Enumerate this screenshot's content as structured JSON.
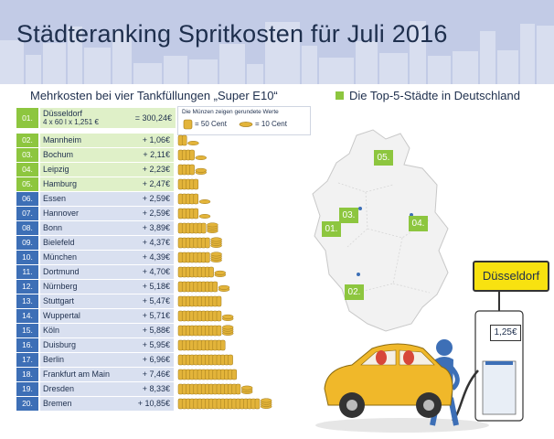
{
  "title": "Städteranking Spritkosten für Juli 2016",
  "subtitle": "Mehrkosten bei vier Tankfüllungen „Super E10“",
  "legend": "Die Top-5-Städte in Deutschland",
  "coin_note": {
    "title": "Die Münzen zeigen gerundete Werte",
    "coin_50": "= 50 Cent",
    "coin_10": "= 10 Cent"
  },
  "colors": {
    "green": "#8dc63f",
    "blue": "#3d6fb6",
    "dark": "#1e2f4d",
    "coin": "#e3b43a"
  },
  "chart_data": {
    "type": "table",
    "reference": {
      "rank": "01.",
      "city": "Düsseldorf",
      "formula": "4 x 60 l x 1,251 €",
      "value_label": "= 300,24€",
      "value": 300.24
    },
    "rows": [
      {
        "rank": "02.",
        "city": "Mannheim",
        "value_label": "+ 1,06€",
        "value": 1.06
      },
      {
        "rank": "03.",
        "city": "Bochum",
        "value_label": "+ 2,11€",
        "value": 2.11
      },
      {
        "rank": "04.",
        "city": "Leipzig",
        "value_label": "+ 2,23€",
        "value": 2.23
      },
      {
        "rank": "05.",
        "city": "Hamburg",
        "value_label": "+ 2,47€",
        "value": 2.47
      },
      {
        "rank": "06.",
        "city": "Essen",
        "value_label": "+ 2,59€",
        "value": 2.59
      },
      {
        "rank": "07.",
        "city": "Hannover",
        "value_label": "+ 2,59€",
        "value": 2.59
      },
      {
        "rank": "08.",
        "city": "Bonn",
        "value_label": "+ 3,89€",
        "value": 3.89
      },
      {
        "rank": "09.",
        "city": "Bielefeld",
        "value_label": "+ 4,37€",
        "value": 4.37
      },
      {
        "rank": "10.",
        "city": "München",
        "value_label": "+ 4,39€",
        "value": 4.39
      },
      {
        "rank": "11.",
        "city": "Dortmund",
        "value_label": "+ 4,70€",
        "value": 4.7
      },
      {
        "rank": "12.",
        "city": "Nürnberg",
        "value_label": "+ 5,18€",
        "value": 5.18
      },
      {
        "rank": "13.",
        "city": "Stuttgart",
        "value_label": "+ 5,47€",
        "value": 5.47
      },
      {
        "rank": "14.",
        "city": "Wuppertal",
        "value_label": "+ 5,71€",
        "value": 5.71
      },
      {
        "rank": "15.",
        "city": "Köln",
        "value_label": "+ 5,88€",
        "value": 5.88
      },
      {
        "rank": "16.",
        "city": "Duisburg",
        "value_label": "+ 5,95€",
        "value": 5.95
      },
      {
        "rank": "17.",
        "city": "Berlin",
        "value_label": "+ 6,96€",
        "value": 6.96
      },
      {
        "rank": "18.",
        "city": "Frankfurt am Main",
        "value_label": "+ 7,46€",
        "value": 7.46
      },
      {
        "rank": "19.",
        "city": "Dresden",
        "value_label": "+ 8,33€",
        "value": 8.33
      },
      {
        "rank": "20.",
        "city": "Bremen",
        "value_label": "+ 10,85€",
        "value": 10.85
      }
    ]
  },
  "map": {
    "labels": [
      {
        "text": "01."
      },
      {
        "text": "02."
      },
      {
        "text": "03."
      },
      {
        "text": "04."
      },
      {
        "text": "05."
      }
    ]
  },
  "sign": "Düsseldorf",
  "price": "1,25€"
}
